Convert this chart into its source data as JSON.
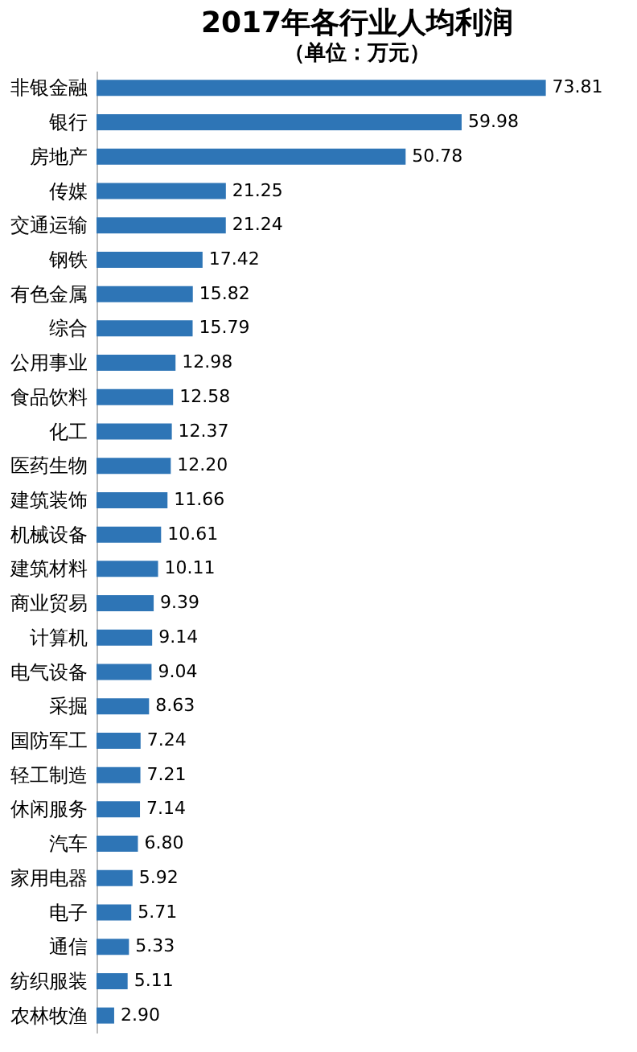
{
  "chart_data": {
    "type": "bar",
    "orientation": "horizontal",
    "title": "2017年各行业人均利润",
    "subtitle": "（单位：万元）",
    "categories": [
      "非银金融",
      "银行",
      "房地产",
      "传媒",
      "交通运输",
      "钢铁",
      "有色金属",
      "综合",
      "公用事业",
      "食品饮料",
      "化工",
      "医药生物",
      "建筑装饰",
      "机械设备",
      "建筑材料",
      "商业贸易",
      "计算机",
      "电气设备",
      "采掘",
      "国防军工",
      "轻工制造",
      "休闲服务",
      "汽车",
      "家用电器",
      "电子",
      "通信",
      "纺织服装",
      "农林牧渔"
    ],
    "values": [
      73.81,
      59.98,
      50.78,
      21.25,
      21.24,
      17.42,
      15.82,
      15.79,
      12.98,
      12.58,
      12.37,
      12.2,
      11.66,
      10.61,
      10.11,
      9.39,
      9.14,
      9.04,
      8.63,
      7.24,
      7.21,
      7.14,
      6.8,
      5.92,
      5.71,
      5.33,
      5.11,
      2.9
    ],
    "value_labels": [
      "73.81",
      "59.98",
      "50.78",
      "21.25",
      "21.24",
      "17.42",
      "15.82",
      "15.79",
      "12.98",
      "12.58",
      "12.37",
      "12.20",
      "11.66",
      "10.61",
      "10.11",
      "9.39",
      "9.14",
      "9.04",
      "8.63",
      "7.24",
      "7.21",
      "7.14",
      "6.80",
      "5.92",
      "5.71",
      "5.33",
      "5.11",
      "2.90"
    ],
    "color": "#2e75b6",
    "tick_labels": "y",
    "grid": false
  }
}
